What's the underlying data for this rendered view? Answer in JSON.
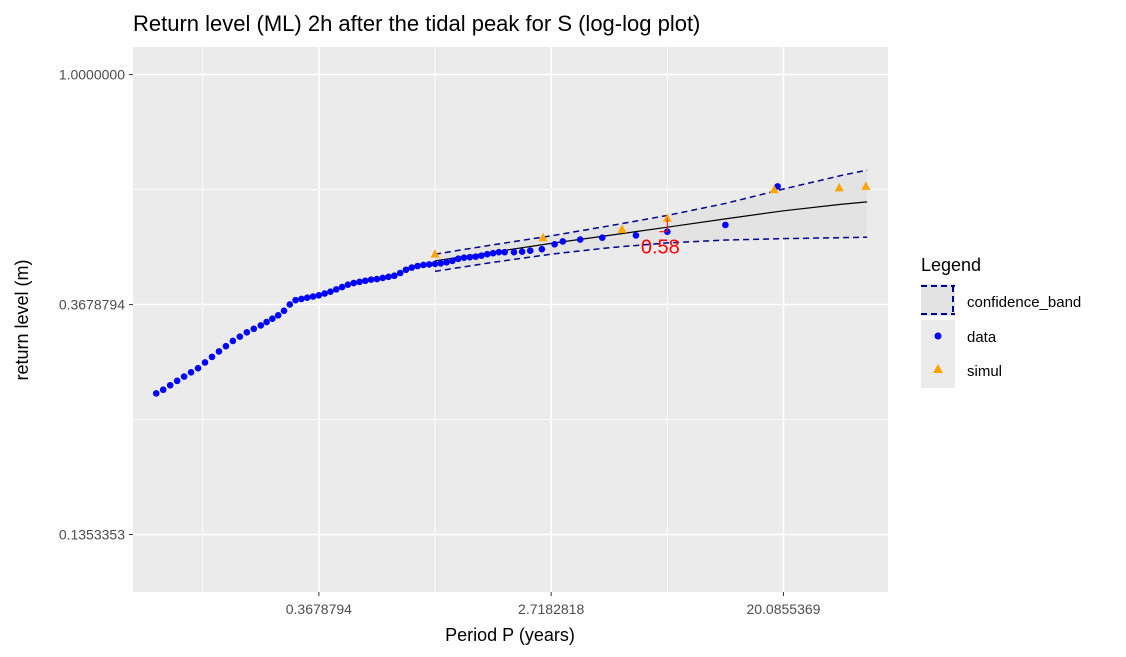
{
  "chart_data": {
    "type": "scatter",
    "title": "Return level (ML) 2h after the tidal peak for S (log-log plot)",
    "xlabel": "Period P (years)",
    "ylabel": "return level (m)",
    "log_x": true,
    "log_y": true,
    "xlim_ln": [
      -2.6,
      3.9
    ],
    "ylim_ln": [
      -2.25,
      0.12
    ],
    "x_ticks": {
      "values_ln": [
        -1,
        1,
        3
      ],
      "labels": [
        "0.3678794",
        "2.7182818",
        "20.0855369"
      ]
    },
    "y_ticks": {
      "values_ln": [
        -2,
        -1,
        0
      ],
      "labels": [
        "0.1353353",
        "0.3678794",
        "1.0000000"
      ]
    },
    "grid": true,
    "legend": {
      "title": "Legend",
      "position": "right",
      "entries": [
        {
          "key": "confidence_band",
          "label": "confidence_band",
          "color": "#00008B"
        },
        {
          "key": "data",
          "label": "data",
          "color": "#0000FF"
        },
        {
          "key": "simul",
          "label": "simul",
          "color": "#FFA500"
        }
      ]
    },
    "colors": {
      "panel": "#EBEBEB",
      "grid": "#FFFFFF",
      "band_fill": "#E3E3E3",
      "fit": "#000000",
      "annotation": "#FF0000"
    },
    "series": [
      {
        "name": "data",
        "shape": "circle",
        "points": [
          [
            -2.4,
            0.25
          ],
          [
            -2.34,
            0.254
          ],
          [
            -2.28,
            0.259
          ],
          [
            -2.22,
            0.264
          ],
          [
            -2.16,
            0.269
          ],
          [
            -2.1,
            0.274
          ],
          [
            -2.04,
            0.279
          ],
          [
            -1.98,
            0.286
          ],
          [
            -1.92,
            0.293
          ],
          [
            -1.86,
            0.3
          ],
          [
            -1.8,
            0.307
          ],
          [
            -1.74,
            0.314
          ],
          [
            -1.68,
            0.32
          ],
          [
            -1.62,
            0.326
          ],
          [
            -1.56,
            0.331
          ],
          [
            -1.5,
            0.336
          ],
          [
            -1.45,
            0.341
          ],
          [
            -1.4,
            0.346
          ],
          [
            -1.35,
            0.351
          ],
          [
            -1.3,
            0.358
          ],
          [
            -1.25,
            0.368
          ],
          [
            -1.2,
            0.375
          ],
          [
            -1.15,
            0.377
          ],
          [
            -1.1,
            0.379
          ],
          [
            -1.05,
            0.381
          ],
          [
            -1.0,
            0.383
          ],
          [
            -0.95,
            0.386
          ],
          [
            -0.9,
            0.389
          ],
          [
            -0.85,
            0.393
          ],
          [
            -0.8,
            0.397
          ],
          [
            -0.75,
            0.401
          ],
          [
            -0.7,
            0.404
          ],
          [
            -0.65,
            0.406
          ],
          [
            -0.6,
            0.408
          ],
          [
            -0.55,
            0.41
          ],
          [
            -0.5,
            0.411
          ],
          [
            -0.45,
            0.413
          ],
          [
            -0.4,
            0.415
          ],
          [
            -0.35,
            0.417
          ],
          [
            -0.3,
            0.422
          ],
          [
            -0.25,
            0.428
          ],
          [
            -0.2,
            0.432
          ],
          [
            -0.15,
            0.435
          ],
          [
            -0.1,
            0.437
          ],
          [
            -0.05,
            0.438
          ],
          [
            0.0,
            0.439
          ],
          [
            0.05,
            0.44
          ],
          [
            0.1,
            0.442
          ],
          [
            0.15,
            0.445
          ],
          [
            0.2,
            0.449
          ],
          [
            0.25,
            0.451
          ],
          [
            0.3,
            0.452
          ],
          [
            0.35,
            0.453
          ],
          [
            0.4,
            0.455
          ],
          [
            0.45,
            0.458
          ],
          [
            0.5,
            0.46
          ],
          [
            0.55,
            0.462
          ],
          [
            0.6,
            0.462
          ],
          [
            0.68,
            0.462
          ],
          [
            0.75,
            0.463
          ],
          [
            0.82,
            0.465
          ],
          [
            0.92,
            0.468
          ],
          [
            1.03,
            0.478
          ],
          [
            1.1,
            0.484
          ],
          [
            1.25,
            0.488
          ],
          [
            1.44,
            0.492
          ],
          [
            1.73,
            0.497
          ],
          [
            2.0,
            0.505
          ],
          [
            2.5,
            0.52
          ],
          [
            2.95,
            0.615
          ]
        ]
      },
      {
        "name": "simul",
        "shape": "triangle",
        "points": [
          [
            0.0,
            0.458
          ],
          [
            0.93,
            0.492
          ],
          [
            1.61,
            0.51
          ],
          [
            2.0,
            0.535
          ],
          [
            2.92,
            0.606
          ],
          [
            3.48,
            0.611
          ],
          [
            3.71,
            0.615
          ]
        ]
      }
    ],
    "fit_line": {
      "name": "ML fit",
      "points": [
        [
          0.0,
          0.445
        ],
        [
          0.5,
          0.462
        ],
        [
          1.0,
          0.48
        ],
        [
          1.5,
          0.497
        ],
        [
          2.0,
          0.515
        ],
        [
          2.5,
          0.534
        ],
        [
          3.0,
          0.553
        ],
        [
          3.5,
          0.569
        ],
        [
          3.72,
          0.575
        ]
      ]
    },
    "confidence_band": {
      "name": "confidence_band",
      "upper": [
        [
          0.0,
          0.458
        ],
        [
          0.5,
          0.477
        ],
        [
          1.0,
          0.496
        ],
        [
          1.5,
          0.518
        ],
        [
          2.0,
          0.542
        ],
        [
          2.5,
          0.571
        ],
        [
          3.0,
          0.608
        ],
        [
          3.5,
          0.645
        ],
        [
          3.72,
          0.66
        ]
      ],
      "lower": [
        [
          0.0,
          0.425
        ],
        [
          0.5,
          0.442
        ],
        [
          1.0,
          0.458
        ],
        [
          1.5,
          0.471
        ],
        [
          2.0,
          0.481
        ],
        [
          2.5,
          0.487
        ],
        [
          3.0,
          0.49
        ],
        [
          3.5,
          0.492
        ],
        [
          3.72,
          0.493
        ]
      ]
    },
    "annotation": {
      "text": "0.58",
      "x_ln": 2.0,
      "y_from": 0.505,
      "y_to": 0.535
    }
  }
}
